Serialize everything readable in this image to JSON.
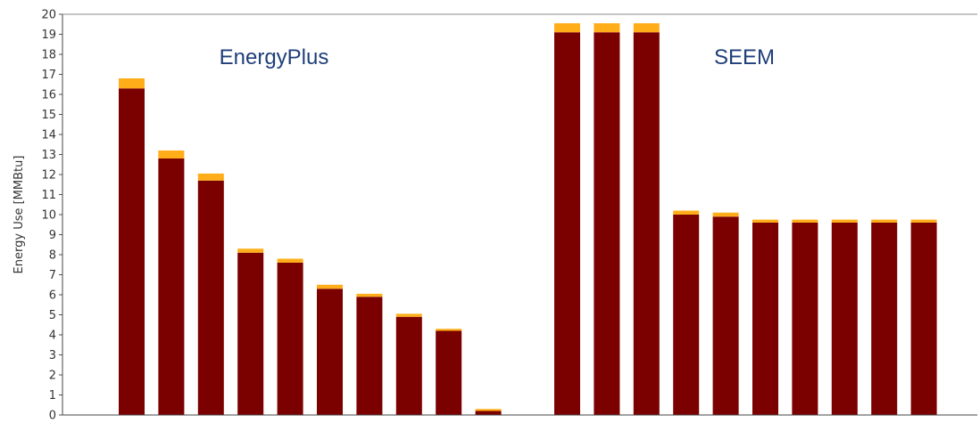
{
  "chart_data": {
    "type": "bar",
    "stacked": true,
    "ylabel": "Energy Use [MMBtu]",
    "ylim": [
      0,
      20
    ],
    "yticks": [
      "0",
      "1",
      "2",
      "3",
      "4",
      "5",
      "6",
      "7",
      "8",
      "9",
      "10",
      "11",
      "12",
      "13",
      "14",
      "15",
      "16",
      "17",
      "18",
      "19",
      "20"
    ],
    "grid": false,
    "groups": [
      {
        "label": "EnergyPlus",
        "first_bar": 0,
        "last_bar": 9
      },
      {
        "label": "SEEM",
        "first_bar": 10,
        "last_bar": 19
      }
    ],
    "series": [
      {
        "color": "#7b0000",
        "values": [
          16.3,
          12.8,
          11.7,
          8.1,
          7.6,
          6.3,
          5.9,
          4.9,
          4.2,
          0.2,
          19.1,
          19.1,
          19.1,
          10.0,
          9.9,
          9.6,
          9.6,
          9.6,
          9.6,
          9.6
        ]
      },
      {
        "color": "#ffae1a",
        "values": [
          0.5,
          0.4,
          0.35,
          0.2,
          0.2,
          0.2,
          0.15,
          0.15,
          0.1,
          0.1,
          0.45,
          0.45,
          0.45,
          0.2,
          0.2,
          0.15,
          0.15,
          0.15,
          0.15,
          0.15
        ]
      }
    ]
  }
}
